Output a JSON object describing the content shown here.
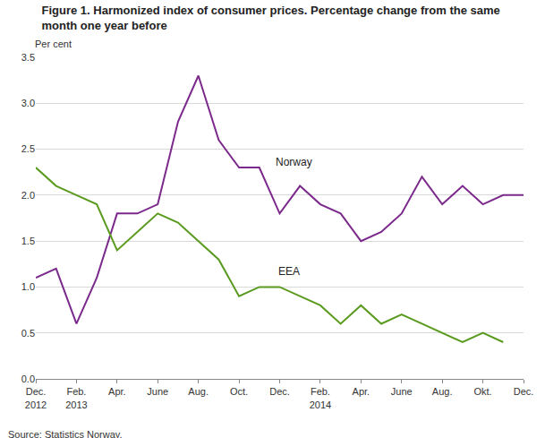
{
  "chart_data": {
    "type": "line",
    "title": "Figure 1. Harmonized index of consumer prices. Percentage change from the same\nmonth one year before",
    "y_label": "Per cent",
    "source": "Source: Statistics Norway.",
    "categories": [
      "Dec.\n2012",
      null,
      "Feb.\n2013",
      null,
      "Apr.",
      null,
      "June",
      null,
      "Aug.",
      null,
      "Oct.",
      null,
      "Dec.",
      null,
      "Feb.\n2014",
      null,
      "Apr.",
      null,
      "June",
      null,
      "Aug.",
      null,
      "Okt.",
      null,
      "Dec."
    ],
    "series": [
      {
        "name": "Norway",
        "color": "#7b2a8c",
        "values": [
          1.1,
          1.2,
          0.6,
          1.1,
          1.8,
          1.8,
          1.9,
          2.8,
          3.3,
          2.6,
          2.3,
          2.3,
          1.8,
          2.1,
          1.9,
          1.8,
          1.5,
          1.6,
          1.8,
          2.2,
          1.9,
          2.1,
          1.9,
          2.0,
          2.0
        ]
      },
      {
        "name": "EEA",
        "color": "#5a9a1e",
        "values": [
          2.3,
          2.1,
          2.0,
          1.9,
          1.4,
          1.6,
          1.8,
          1.7,
          1.5,
          1.3,
          0.9,
          1.0,
          1.0,
          0.9,
          0.8,
          0.6,
          0.8,
          0.6,
          0.7,
          0.6,
          0.5,
          0.4,
          0.5,
          0.4,
          null
        ]
      }
    ],
    "ylim": [
      0,
      3.5
    ],
    "yticks": [
      {
        "value": 0,
        "label": "0.0"
      },
      {
        "value": 0.5,
        "label": "0.5"
      },
      {
        "value": 1,
        "label": "1.0"
      },
      {
        "value": 1.5,
        "label": "1.5"
      },
      {
        "value": 2,
        "label": "2.0"
      },
      {
        "value": 2.5,
        "label": "2.5"
      },
      {
        "value": 3,
        "label": "3.0"
      },
      {
        "value": 3.5,
        "label": "3.5"
      }
    ],
    "grid": true
  }
}
